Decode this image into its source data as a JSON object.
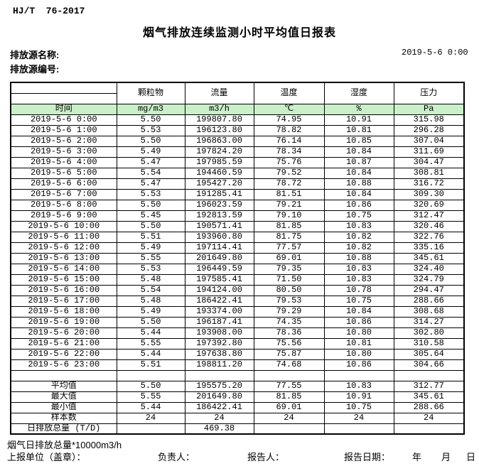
{
  "page": {
    "doc_code": "HJ/T  76-2017",
    "title": "烟气排放连续监测小时平均值日报表",
    "source_name_label": "排放源名称:",
    "source_code_label": "排放源编号:",
    "report_datetime": "2019-5-6 0:00"
  },
  "table": {
    "header_row_color": "#c9f0c9",
    "time_header": "时间",
    "columns": [
      {
        "label": "颗粒物",
        "unit": "mg/m3"
      },
      {
        "label": "流量",
        "unit": "m3/h"
      },
      {
        "label": "温度",
        "unit": "℃"
      },
      {
        "label": "湿度",
        "unit": "%"
      },
      {
        "label": "压力",
        "unit": "Pa"
      }
    ],
    "rows": [
      {
        "time": "2019-5-6 0:00",
        "values": [
          "5.50",
          "199807.80",
          "74.95",
          "10.91",
          "315.98"
        ]
      },
      {
        "time": "2019-5-6 1:00",
        "values": [
          "5.53",
          "196123.80",
          "78.82",
          "10.81",
          "296.28"
        ]
      },
      {
        "time": "2019-5-6 2:00",
        "values": [
          "5.50",
          "196863.00",
          "76.14",
          "10.85",
          "307.04"
        ]
      },
      {
        "time": "2019-5-6 3:00",
        "values": [
          "5.49",
          "197824.20",
          "78.34",
          "10.84",
          "311.69"
        ]
      },
      {
        "time": "2019-5-6 4:00",
        "values": [
          "5.47",
          "197985.59",
          "75.76",
          "10.87",
          "304.47"
        ]
      },
      {
        "time": "2019-5-6 5:00",
        "values": [
          "5.54",
          "194460.59",
          "79.52",
          "10.84",
          "308.81"
        ]
      },
      {
        "time": "2019-5-6 6:00",
        "values": [
          "5.47",
          "195427.20",
          "78.72",
          "10.88",
          "316.72"
        ]
      },
      {
        "time": "2019-5-6 7:00",
        "values": [
          "5.53",
          "191285.41",
          "81.51",
          "10.84",
          "309.30"
        ]
      },
      {
        "time": "2019-5-6 8:00",
        "values": [
          "5.50",
          "196023.59",
          "79.21",
          "10.86",
          "320.69"
        ]
      },
      {
        "time": "2019-5-6 9:00",
        "values": [
          "5.45",
          "192813.59",
          "79.10",
          "10.75",
          "312.47"
        ]
      },
      {
        "time": "2019-5-6 10:00",
        "values": [
          "5.50",
          "190571.41",
          "81.85",
          "10.83",
          "320.46"
        ]
      },
      {
        "time": "2019-5-6 11:00",
        "values": [
          "5.51",
          "193960.80",
          "81.75",
          "10.82",
          "322.76"
        ]
      },
      {
        "time": "2019-5-6 12:00",
        "values": [
          "5.49",
          "197114.41",
          "77.57",
          "10.82",
          "335.16"
        ]
      },
      {
        "time": "2019-5-6 13:00",
        "values": [
          "5.55",
          "201649.80",
          "69.01",
          "10.88",
          "345.61"
        ]
      },
      {
        "time": "2019-5-6 14:00",
        "values": [
          "5.53",
          "196449.59",
          "79.35",
          "10.83",
          "324.40"
        ]
      },
      {
        "time": "2019-5-6 15:00",
        "values": [
          "5.48",
          "197585.41",
          "71.50",
          "10.83",
          "324.79"
        ]
      },
      {
        "time": "2019-5-6 16:00",
        "values": [
          "5.54",
          "194124.00",
          "80.50",
          "10.78",
          "294.47"
        ]
      },
      {
        "time": "2019-5-6 17:00",
        "values": [
          "5.48",
          "186422.41",
          "79.53",
          "10.75",
          "288.66"
        ]
      },
      {
        "time": "2019-5-6 18:00",
        "values": [
          "5.49",
          "193374.00",
          "79.29",
          "10.84",
          "308.68"
        ]
      },
      {
        "time": "2019-5-6 19:00",
        "values": [
          "5.50",
          "196187.41",
          "74.35",
          "10.86",
          "314.27"
        ]
      },
      {
        "time": "2019-5-6 20:00",
        "values": [
          "5.44",
          "193908.00",
          "78.36",
          "10.80",
          "302.80"
        ]
      },
      {
        "time": "2019-5-6 21:00",
        "values": [
          "5.55",
          "197392.80",
          "75.56",
          "10.81",
          "310.58"
        ]
      },
      {
        "time": "2019-5-6 22:00",
        "values": [
          "5.44",
          "197638.80",
          "75.87",
          "10.80",
          "305.64"
        ]
      },
      {
        "time": "2019-5-6 23:00",
        "values": [
          "5.51",
          "198811.20",
          "74.68",
          "10.86",
          "304.66"
        ]
      }
    ],
    "summary": [
      {
        "label": "平均值",
        "values": [
          "5.50",
          "195575.20",
          "77.55",
          "10.83",
          "312.77"
        ]
      },
      {
        "label": "最大值",
        "values": [
          "5.55",
          "201649.80",
          "81.85",
          "10.91",
          "345.61"
        ]
      },
      {
        "label": "最小值",
        "values": [
          "5.44",
          "186422.41",
          "69.01",
          "10.75",
          "288.66"
        ]
      },
      {
        "label": "样本数",
        "values": [
          "24",
          "24",
          "24",
          "24",
          "24"
        ]
      },
      {
        "label": "日排放总量 (T/D)",
        "values": [
          "",
          "469.38",
          "",
          "",
          ""
        ]
      }
    ]
  },
  "footer": {
    "note": "烟气日排放总量*10000m3/h",
    "unit_label": "上报单位（盖章）：",
    "responsible_label": "负责人：",
    "reporter_label": "报告人：",
    "report_date_label": "报告日期：",
    "year_label": "年",
    "month_label": "月",
    "day_label": "日"
  }
}
